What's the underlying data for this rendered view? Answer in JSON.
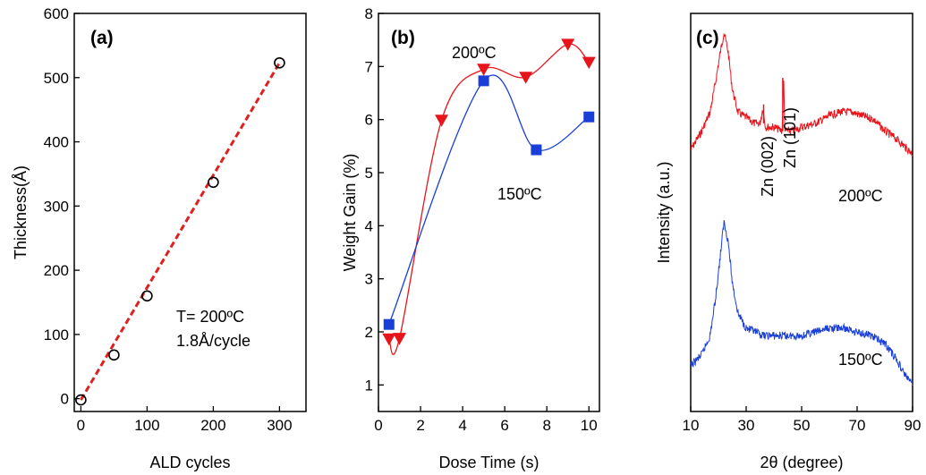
{
  "chart_data": [
    {
      "type": "scatter",
      "panel_label": "(a)",
      "xlabel": "ALD cycles",
      "ylabel": "Thickness(Å)",
      "xlim": [
        -10,
        340
      ],
      "ylim": [
        -20,
        600
      ],
      "xticks": [
        0,
        100,
        200,
        300
      ],
      "yticks": [
        0,
        100,
        200,
        300,
        400,
        500,
        600
      ],
      "x_tick_labels": [
        "0",
        "100",
        "200",
        "300"
      ],
      "y_tick_labels": [
        "0",
        "100",
        "200",
        "300",
        "400",
        "500",
        "600"
      ],
      "points": [
        {
          "x": 0,
          "y": -2
        },
        {
          "x": 50,
          "y": 68
        },
        {
          "x": 100,
          "y": 160
        },
        {
          "x": 200,
          "y": 337
        },
        {
          "x": 300,
          "y": 523
        }
      ],
      "fit_line": {
        "color": "#e02020",
        "from": [
          0,
          -2
        ],
        "to": [
          300,
          523
        ]
      },
      "annotation_lines": [
        "T= 200ºC",
        "1.8Å/cycle"
      ]
    },
    {
      "type": "scatter",
      "panel_label": "(b)",
      "xlabel": "Dose Time (s)",
      "ylabel": "Weight Gain (%)",
      "xlim": [
        0,
        10.5
      ],
      "ylim": [
        0.5,
        8
      ],
      "xticks": [
        0,
        2,
        4,
        6,
        8,
        10
      ],
      "yticks": [
        1,
        2,
        3,
        4,
        5,
        6,
        7,
        8
      ],
      "x_tick_labels": [
        "0",
        "2",
        "4",
        "6",
        "8",
        "10"
      ],
      "y_tick_labels": [
        "1",
        "2",
        "3",
        "4",
        "5",
        "6",
        "7",
        "8"
      ],
      "series": [
        {
          "label": "200ºC",
          "marker": "triangle-down",
          "color": "#e8141c",
          "x": [
            0.5,
            1.0,
            3.0,
            5.0,
            7.0,
            9.0,
            10.0
          ],
          "y": [
            1.87,
            1.88,
            5.99,
            6.95,
            6.8,
            7.42,
            7.08
          ]
        },
        {
          "label": "150ºC",
          "marker": "square",
          "color": "#1a3fd8",
          "x": [
            0.5,
            5.0,
            7.5,
            10.0
          ],
          "y": [
            2.14,
            6.73,
            5.43,
            6.05
          ]
        }
      ]
    },
    {
      "type": "line",
      "panel_label": "(c)",
      "xlabel": "2θ (degree)",
      "ylabel": "Intensity (a.u.)",
      "xlim": [
        10,
        90
      ],
      "xticks": [
        10,
        30,
        50,
        70,
        90
      ],
      "x_tick_labels": [
        "10",
        "30",
        "50",
        "70",
        "90"
      ],
      "series": [
        {
          "label": "200ºC",
          "color": "#e8141c",
          "x": [
            10,
            14,
            17,
            19,
            20.5,
            22,
            23.5,
            25,
            27,
            29,
            31,
            33,
            35,
            36,
            37,
            40,
            43,
            43.5,
            44,
            47,
            50,
            55,
            60,
            64,
            68,
            72,
            76,
            80,
            84,
            87,
            90
          ],
          "y": [
            0.69,
            0.74,
            0.79,
            0.87,
            0.94,
            1.0,
            0.95,
            0.85,
            0.79,
            0.78,
            0.77,
            0.76,
            0.76,
            0.8,
            0.75,
            0.75,
            0.74,
            0.88,
            0.74,
            0.74,
            0.75,
            0.76,
            0.78,
            0.79,
            0.79,
            0.78,
            0.77,
            0.74,
            0.72,
            0.7,
            0.68
          ]
        },
        {
          "label": "150ºC",
          "color": "#1a3fd8",
          "x": [
            10,
            14,
            17,
            19,
            20.5,
            22,
            23.5,
            25,
            27,
            30,
            33,
            36,
            40,
            45,
            50,
            55,
            60,
            65,
            70,
            75,
            80,
            84,
            87,
            90
          ],
          "y": [
            0.12,
            0.15,
            0.2,
            0.3,
            0.4,
            0.5,
            0.45,
            0.34,
            0.26,
            0.22,
            0.21,
            0.2,
            0.2,
            0.2,
            0.2,
            0.21,
            0.22,
            0.22,
            0.21,
            0.2,
            0.18,
            0.14,
            0.1,
            0.07
          ]
        }
      ],
      "annotations": [
        "Zn (002)",
        "Zn (101)"
      ]
    }
  ]
}
